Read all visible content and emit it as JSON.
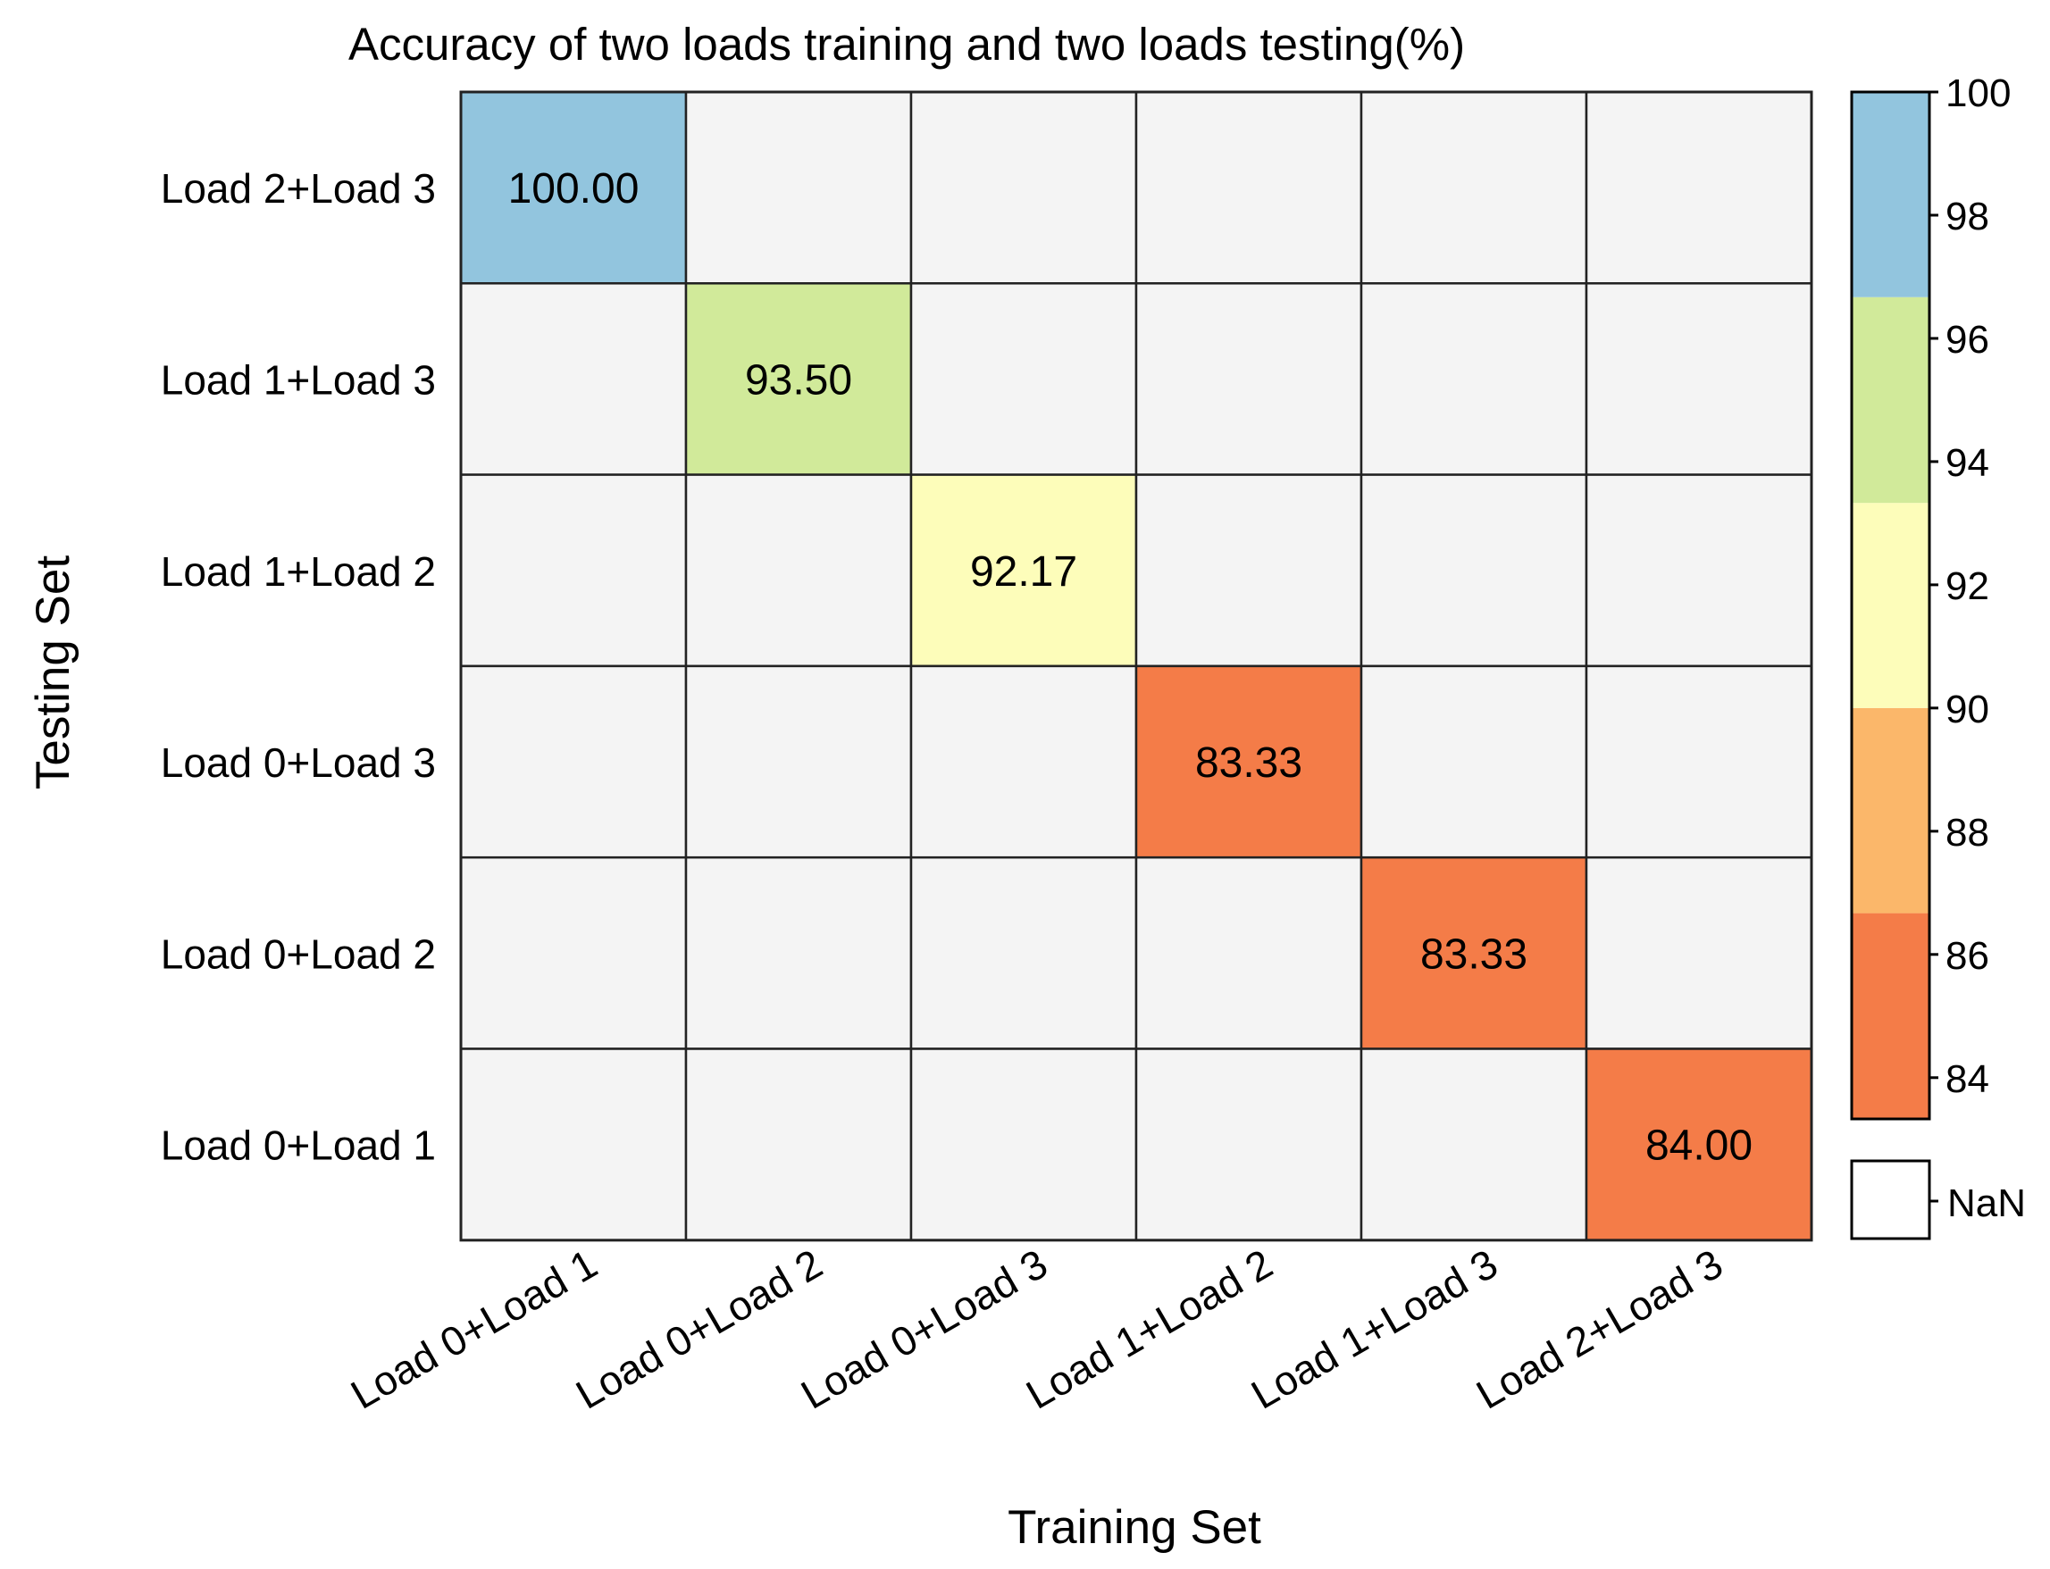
{
  "chart_data": {
    "type": "heatmap",
    "title": "Accuracy of two loads training and two loads testing(%)",
    "xlabel": "Training Set",
    "ylabel": "Testing Set",
    "x_categories": [
      "Load 0+Load 1",
      "Load 0+Load 2",
      "Load 0+Load 3",
      "Load 1+Load 2",
      "Load 1+Load 3",
      "Load 2+Load 3"
    ],
    "y_categories": [
      "Load 2+Load 3",
      "Load 1+Load 3",
      "Load 1+Load 2",
      "Load 0+Load 3",
      "Load 0+Load 2",
      "Load 0+Load 1"
    ],
    "values": [
      [
        100.0,
        null,
        null,
        null,
        null,
        null
      ],
      [
        null,
        93.5,
        null,
        null,
        null,
        null
      ],
      [
        null,
        null,
        92.17,
        null,
        null,
        null
      ],
      [
        null,
        null,
        null,
        83.33,
        null,
        null
      ],
      [
        null,
        null,
        null,
        null,
        83.33,
        null
      ],
      [
        null,
        null,
        null,
        null,
        null,
        84.0
      ]
    ],
    "value_labels": [
      [
        "100.00",
        "",
        "",
        "",
        "",
        ""
      ],
      [
        "",
        "93.50",
        "",
        "",
        "",
        ""
      ],
      [
        "",
        "",
        "92.17",
        "",
        "",
        ""
      ],
      [
        "",
        "",
        "",
        "83.33",
        "",
        ""
      ],
      [
        "",
        "",
        "",
        "",
        "83.33",
        ""
      ],
      [
        "",
        "",
        "",
        "",
        "",
        "84.00"
      ]
    ],
    "colorbar": {
      "range": [
        83.33,
        100
      ],
      "ticks": [
        84,
        86,
        88,
        90,
        92,
        94,
        96,
        98,
        100
      ],
      "bands": [
        {
          "from": 83.33,
          "to": 86.67,
          "color": "#f47c48"
        },
        {
          "from": 86.67,
          "to": 90.0,
          "color": "#fbb76a"
        },
        {
          "from": 90.0,
          "to": 93.33,
          "color": "#fdfdba"
        },
        {
          "from": 93.33,
          "to": 96.67,
          "color": "#d1ea9a"
        },
        {
          "from": 96.67,
          "to": 100,
          "color": "#92c5de"
        }
      ]
    },
    "nan_label": "NaN",
    "nan_color": "#f4f4f4",
    "grid": true
  }
}
